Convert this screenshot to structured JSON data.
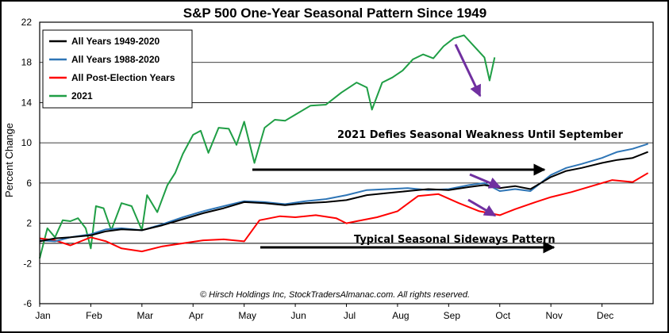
{
  "chart_data": {
    "type": "line",
    "title": "S&P 500 One-Year Seasonal Pattern Since 1949",
    "ylabel": "Percent Change",
    "xlabel": "",
    "ylim": [
      -6,
      22
    ],
    "yticks": [
      -6,
      -2,
      2,
      6,
      10,
      14,
      18,
      22
    ],
    "grid": true,
    "legend_position": "top-left",
    "months": [
      "Jan",
      "Feb",
      "Mar",
      "Apr",
      "May",
      "Jun",
      "Jul",
      "Aug",
      "Sep",
      "Oct",
      "Nov",
      "Dec"
    ],
    "series": [
      {
        "name": "All Years 1949-2020",
        "color": "#000000",
        "x": [
          0,
          0.3,
          0.6,
          1,
          1.3,
          1.6,
          2,
          2.4,
          2.8,
          3.2,
          3.6,
          4,
          4.4,
          4.8,
          5.2,
          5.6,
          6,
          6.4,
          6.8,
          7.2,
          7.6,
          8,
          8.4,
          8.7,
          9,
          9.3,
          9.6,
          10,
          10.3,
          10.6,
          11,
          11.3,
          11.6,
          11.9
        ],
        "values": [
          0.2,
          0.5,
          0.6,
          0.8,
          1.2,
          1.4,
          1.3,
          1.8,
          2.4,
          3.0,
          3.5,
          4.1,
          4.0,
          3.8,
          4.0,
          4.1,
          4.3,
          4.8,
          5.0,
          5.2,
          5.4,
          5.3,
          5.6,
          5.8,
          5.5,
          5.7,
          5.4,
          6.6,
          7.2,
          7.5,
          8.0,
          8.3,
          8.5,
          9.1
        ]
      },
      {
        "name": "All Years 1988-2020",
        "color": "#2e75b6",
        "x": [
          0,
          0.3,
          0.6,
          1,
          1.3,
          1.6,
          2,
          2.4,
          2.8,
          3.2,
          3.6,
          4,
          4.4,
          4.8,
          5.2,
          5.6,
          6,
          6.4,
          6.8,
          7.2,
          7.6,
          8,
          8.4,
          8.7,
          9,
          9.3,
          9.6,
          10,
          10.3,
          10.6,
          11,
          11.3,
          11.6,
          11.9
        ],
        "values": [
          0.3,
          0.2,
          0.6,
          0.9,
          1.4,
          1.5,
          1.3,
          1.9,
          2.6,
          3.2,
          3.7,
          4.2,
          4.1,
          3.9,
          4.2,
          4.4,
          4.8,
          5.3,
          5.4,
          5.5,
          5.3,
          5.4,
          5.8,
          6.0,
          5.2,
          5.4,
          5.2,
          6.8,
          7.5,
          7.9,
          8.5,
          9.1,
          9.4,
          9.9
        ]
      },
      {
        "name": "All Post-Election Years",
        "color": "#ff0000",
        "x": [
          0,
          0.3,
          0.6,
          1,
          1.3,
          1.6,
          2,
          2.4,
          2.8,
          3.2,
          3.6,
          4,
          4.3,
          4.7,
          5,
          5.4,
          5.8,
          6,
          6.2,
          6.6,
          7,
          7.4,
          7.8,
          8.2,
          8.6,
          9,
          9.3,
          9.7,
          10,
          10.4,
          10.8,
          11.2,
          11.6,
          11.9
        ],
        "values": [
          0.5,
          0.3,
          -0.2,
          0.6,
          0.2,
          -0.5,
          -0.8,
          -0.3,
          0.0,
          0.3,
          0.4,
          0.2,
          2.3,
          2.7,
          2.6,
          2.8,
          2.5,
          2.0,
          2.2,
          2.6,
          3.2,
          4.7,
          4.9,
          4.0,
          3.2,
          2.8,
          3.4,
          4.1,
          4.6,
          5.1,
          5.7,
          6.3,
          6.1,
          7.0
        ]
      },
      {
        "name": "2021",
        "color": "#1f9e45",
        "x": [
          0,
          0.15,
          0.3,
          0.45,
          0.6,
          0.75,
          0.9,
          1.0,
          1.1,
          1.25,
          1.4,
          1.6,
          1.8,
          2.0,
          2.1,
          2.3,
          2.5,
          2.65,
          2.8,
          3.0,
          3.15,
          3.3,
          3.5,
          3.7,
          3.85,
          4.0,
          4.2,
          4.4,
          4.6,
          4.8,
          5.0,
          5.3,
          5.6,
          5.9,
          6.2,
          6.4,
          6.5,
          6.7,
          6.9,
          7.1,
          7.3,
          7.5,
          7.7,
          7.9,
          8.1,
          8.3,
          8.5,
          8.7,
          8.8,
          8.9
        ],
        "values": [
          -1.5,
          1.5,
          0.6,
          2.3,
          2.2,
          2.5,
          1.5,
          -0.5,
          3.7,
          3.5,
          1.3,
          4.0,
          3.7,
          1.3,
          4.8,
          3.1,
          5.8,
          7.0,
          8.9,
          10.8,
          11.2,
          9.0,
          11.5,
          11.4,
          9.8,
          12.1,
          8.0,
          11.5,
          12.3,
          12.2,
          12.8,
          13.7,
          13.8,
          15.0,
          16.0,
          15.5,
          13.3,
          16.0,
          16.5,
          17.2,
          18.3,
          18.8,
          18.4,
          19.6,
          20.4,
          20.7,
          19.6,
          18.5,
          16.2,
          18.5
        ]
      }
    ],
    "annotations": [
      {
        "id": "defies",
        "text": "2021 Defies Seasonal Weakness Until September"
      },
      {
        "id": "sideways",
        "text": "Typical Seasonal Sideways Pattern"
      }
    ],
    "copyright": "© Hirsch Holdings Inc, StockTradersAlmanac.com. All rights reserved."
  },
  "colors": {
    "arrow_black": "#000000",
    "arrow_purple": "#7030a0"
  }
}
